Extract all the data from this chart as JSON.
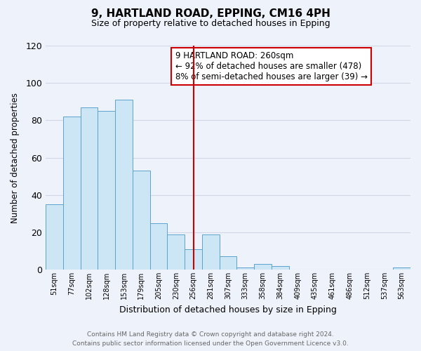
{
  "title": "9, HARTLAND ROAD, EPPING, CM16 4PH",
  "subtitle": "Size of property relative to detached houses in Epping",
  "xlabel": "Distribution of detached houses by size in Epping",
  "ylabel": "Number of detached properties",
  "bar_labels": [
    "51sqm",
    "77sqm",
    "102sqm",
    "128sqm",
    "153sqm",
    "179sqm",
    "205sqm",
    "230sqm",
    "256sqm",
    "281sqm",
    "307sqm",
    "333sqm",
    "358sqm",
    "384sqm",
    "409sqm",
    "435sqm",
    "461sqm",
    "486sqm",
    "512sqm",
    "537sqm",
    "563sqm"
  ],
  "bar_values": [
    35,
    82,
    87,
    85,
    91,
    53,
    25,
    19,
    11,
    19,
    7,
    1,
    3,
    2,
    0,
    0,
    0,
    0,
    0,
    0,
    1
  ],
  "bar_color": "#cde6f5",
  "bar_edge_color": "#5ba3cc",
  "vline_x": 8,
  "vline_color": "#cc0000",
  "annotation_title": "9 HARTLAND ROAD: 260sqm",
  "annotation_line1": "← 92% of detached houses are smaller (478)",
  "annotation_line2": "8% of semi-detached houses are larger (39) →",
  "annotation_box_color": "#ffffff",
  "annotation_box_edge": "#cc0000",
  "footer_line1": "Contains HM Land Registry data © Crown copyright and database right 2024.",
  "footer_line2": "Contains public sector information licensed under the Open Government Licence v3.0.",
  "ylim": [
    0,
    120
  ],
  "yticks": [
    0,
    20,
    40,
    60,
    80,
    100,
    120
  ],
  "background_color": "#eef2fb",
  "grid_color": "#d0d8e8"
}
